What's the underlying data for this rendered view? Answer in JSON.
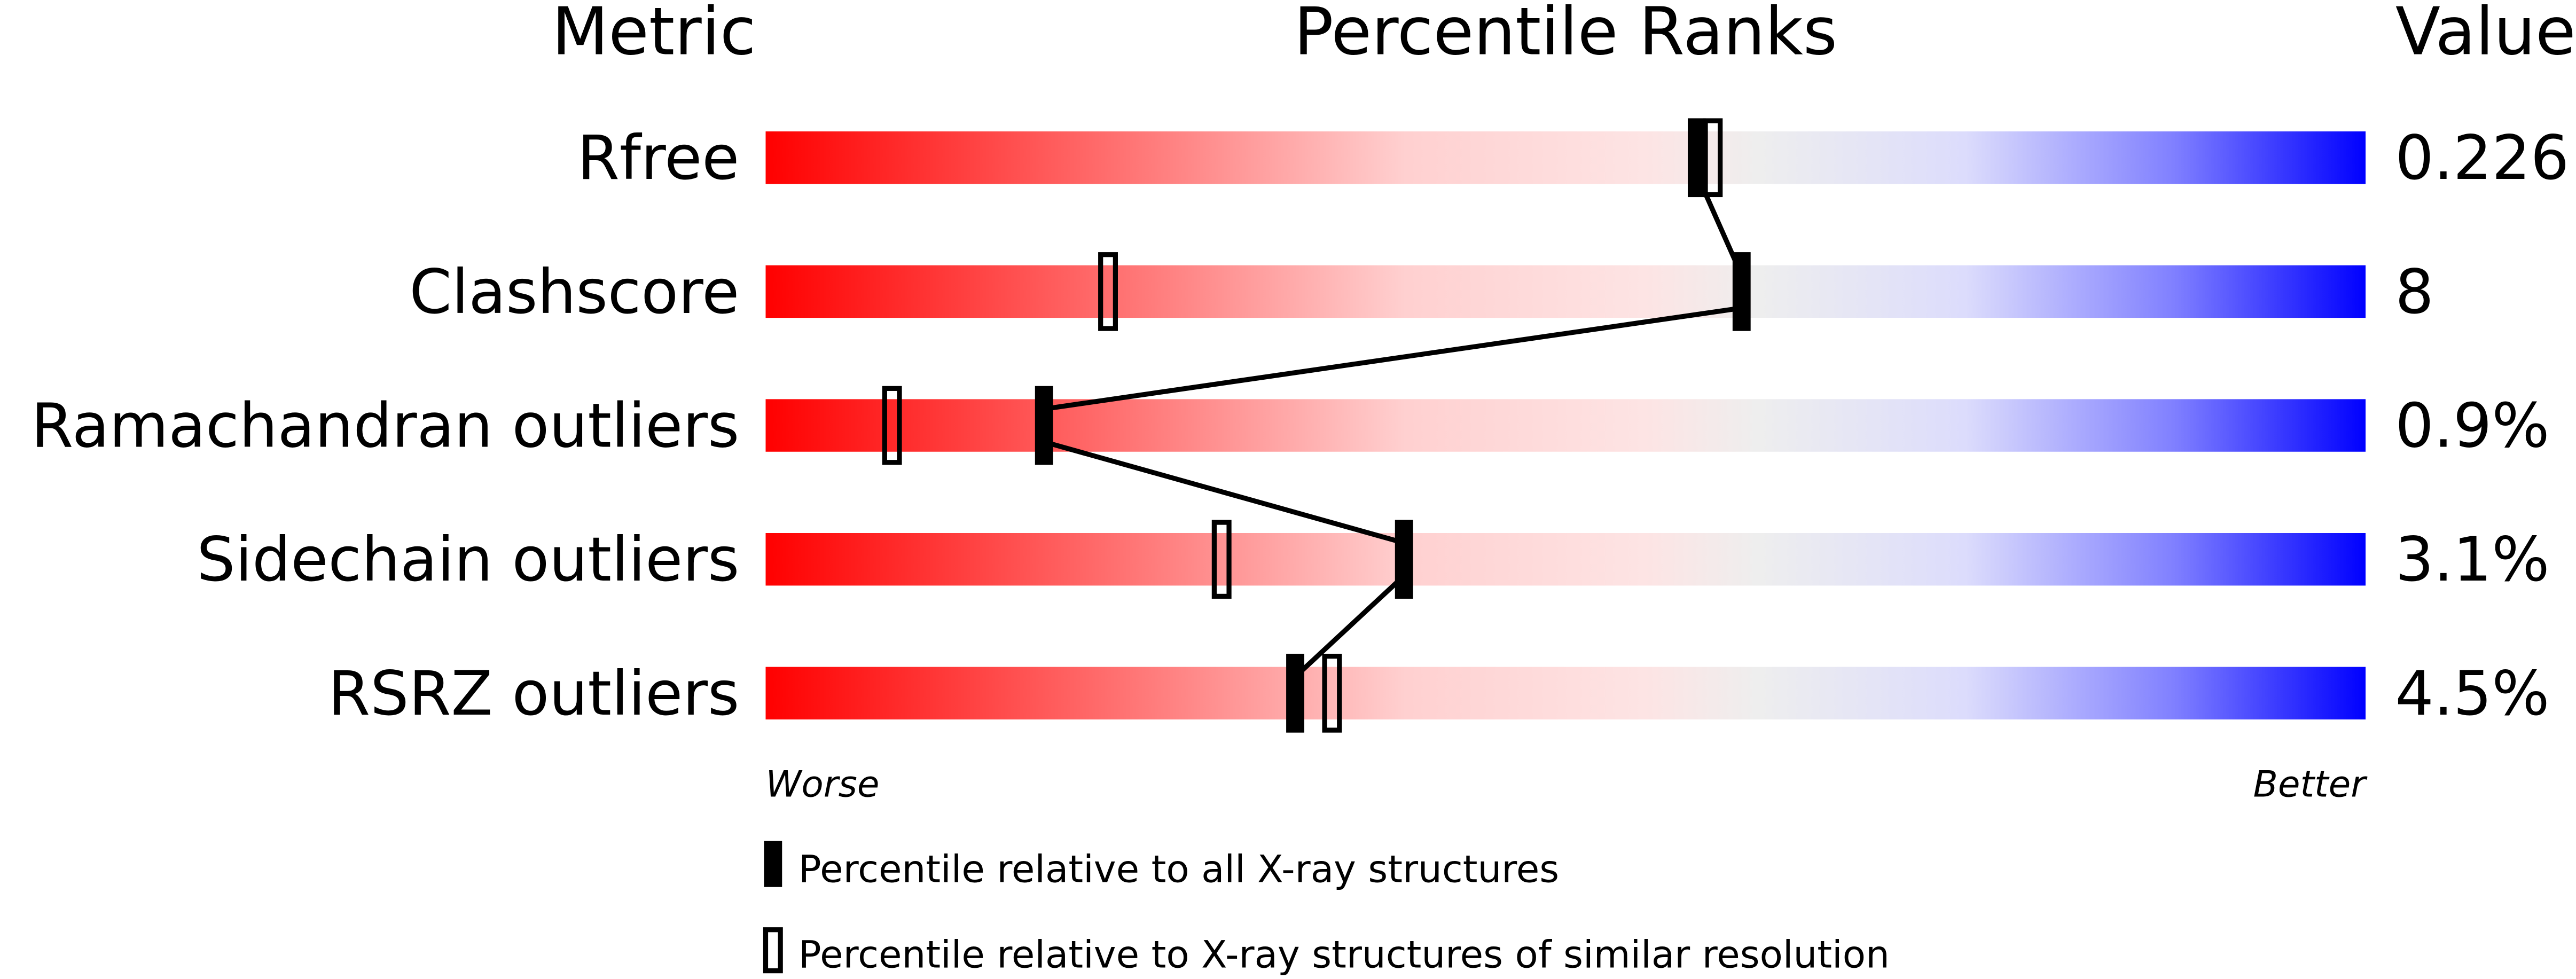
{
  "chart_data": {
    "type": "bar",
    "headers": {
      "metric": "Metric",
      "ranks": "Percentile Ranks",
      "value": "Value"
    },
    "xlim": [
      0,
      100
    ],
    "axis_labels": {
      "left": "Worse",
      "right": "Better"
    },
    "gradient_colors": {
      "worse": "#ff0000",
      "mid": "#eeeeee",
      "better": "#0000ff"
    },
    "rows": [
      {
        "metric": "Rfree",
        "value": "0.226",
        "percentile_all": 58.2,
        "percentile_similar": 59.2
      },
      {
        "metric": "Clashscore",
        "value": "8",
        "percentile_all": 61.0,
        "percentile_similar": 21.4
      },
      {
        "metric": "Ramachandran outliers",
        "value": "0.9%",
        "percentile_all": 17.4,
        "percentile_similar": 7.9
      },
      {
        "metric": "Sidechain outliers",
        "value": "3.1%",
        "percentile_all": 39.9,
        "percentile_similar": 28.5
      },
      {
        "metric": "RSRZ outliers",
        "value": "4.5%",
        "percentile_all": 33.1,
        "percentile_similar": 35.4
      }
    ],
    "legend": [
      {
        "marker": "filled",
        "label": "Percentile relative to all X-ray structures"
      },
      {
        "marker": "open",
        "label": "Percentile relative to X-ray structures of similar resolution"
      }
    ],
    "legend_position": "bottom"
  }
}
